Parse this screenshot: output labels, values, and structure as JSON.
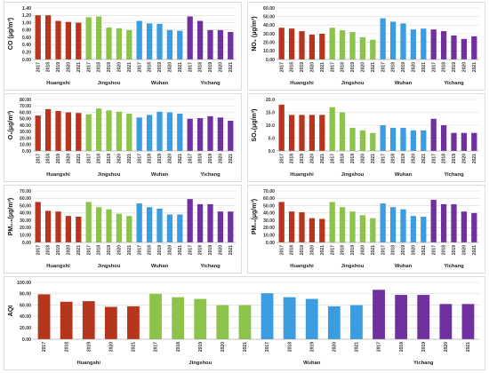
{
  "colors": {
    "Huangshi": "#b5351d",
    "Jingshou": "#8cc34a",
    "Wuhan": "#3c9ce0",
    "Yichang": "#7030a0",
    "grid": "#d9d9d9",
    "highlight": "#f4c6e8"
  },
  "chart_data": [
    {
      "type": "bar",
      "ylabel": "CO (μg/m³)",
      "ylim": [
        0,
        1.4
      ],
      "ticks": [
        "0.00",
        "0.20",
        "0.40",
        "0.60",
        "0.80",
        "1.00",
        "1.20",
        "1.40"
      ],
      "groups": [
        {
          "name": "Huangshi",
          "years": [
            "2017",
            "2018",
            "2019",
            "2020",
            "2021"
          ],
          "values": [
            1.2,
            1.2,
            1.05,
            1.02,
            1.0
          ]
        },
        {
          "name": "Jingshou",
          "years": [
            "2017",
            "2018",
            "2019",
            "2020",
            "2021"
          ],
          "values": [
            1.15,
            1.17,
            0.87,
            0.85,
            0.8
          ]
        },
        {
          "name": "Wuhan",
          "years": [
            "2017",
            "2018",
            "2019",
            "2020",
            "2021"
          ],
          "values": [
            1.05,
            0.98,
            0.97,
            0.8,
            0.78
          ]
        },
        {
          "name": "Yichang",
          "years": [
            "2017",
            "2018",
            "2019",
            "2020",
            "2021"
          ],
          "values": [
            1.17,
            1.05,
            0.8,
            0.8,
            0.75
          ]
        }
      ]
    },
    {
      "type": "bar",
      "ylabel": "NO₂ (μg/m³)",
      "ylim": [
        0,
        60
      ],
      "ticks": [
        "0.00",
        "10.00",
        "20.00",
        "30.00",
        "40.00",
        "50.00",
        "60.00"
      ],
      "groups": [
        {
          "name": "Huangshi",
          "years": [
            "2017",
            "2018",
            "2019",
            "2020",
            "2021"
          ],
          "values": [
            37,
            36,
            33,
            29,
            30
          ]
        },
        {
          "name": "Jingshou",
          "years": [
            "2017",
            "2018",
            "2019",
            "2020",
            "2021"
          ],
          "values": [
            37,
            34,
            32,
            26,
            23
          ]
        },
        {
          "name": "Wuhan",
          "years": [
            "2017",
            "2018",
            "2019",
            "2020",
            "2021"
          ],
          "values": [
            48,
            44,
            42,
            35,
            36
          ]
        },
        {
          "name": "Yichang",
          "years": [
            "2017",
            "2018",
            "2019",
            "2020",
            "2021"
          ],
          "values": [
            35,
            33,
            28,
            24,
            27
          ]
        }
      ]
    },
    {
      "type": "bar",
      "ylabel": "O₃(μg/m³)",
      "ylim": [
        0,
        80
      ],
      "ticks": [
        "0.00",
        "10.00",
        "20.00",
        "30.00",
        "40.00",
        "50.00",
        "60.00",
        "70.00",
        "80.00"
      ],
      "groups": [
        {
          "name": "Huangshi",
          "years": [
            "2017",
            "2018",
            "2019",
            "2020",
            "2021"
          ],
          "values": [
            55,
            65,
            62,
            60,
            59
          ]
        },
        {
          "name": "Jingshou",
          "years": [
            "2017",
            "2018",
            "2019",
            "2020",
            "2021"
          ],
          "values": [
            57,
            66,
            63,
            61,
            58
          ]
        },
        {
          "name": "Wuhan",
          "years": [
            "2017",
            "2018",
            "2019",
            "2020",
            "2021"
          ],
          "values": [
            52,
            56,
            61,
            60,
            58
          ]
        },
        {
          "name": "Yichang",
          "years": [
            "2017",
            "2018",
            "2019",
            "2020",
            "2021"
          ],
          "values": [
            50,
            51,
            54,
            52,
            47
          ]
        }
      ]
    },
    {
      "type": "bar",
      "ylabel": "SO₂(μg/m³)",
      "ylim": [
        0,
        20
      ],
      "ticks": [
        "0.0",
        "5.0",
        "10.0",
        "15.0",
        "20.0"
      ],
      "groups": [
        {
          "name": "Huangshi",
          "years": [
            "2017",
            "2018",
            "2019",
            "2020",
            "2021"
          ],
          "values": [
            18,
            14,
            14,
            14,
            14
          ]
        },
        {
          "name": "Jingshou",
          "years": [
            "2017",
            "2018",
            "2019",
            "2020",
            "2021"
          ],
          "values": [
            17,
            15,
            9,
            8,
            7
          ]
        },
        {
          "name": "Wuhan",
          "years": [
            "2017",
            "2018",
            "2019",
            "2020",
            "2021"
          ],
          "values": [
            10,
            9,
            9,
            8,
            8
          ]
        },
        {
          "name": "Yichang",
          "years": [
            "2017",
            "2018",
            "2019",
            "2020",
            "2021"
          ],
          "values": [
            12.5,
            10,
            7,
            7,
            7
          ]
        }
      ]
    },
    {
      "type": "bar",
      "ylabel": "PM₂.₅(μg/m³)",
      "ylim": [
        0,
        70
      ],
      "ticks": [
        "0.00",
        "10.00",
        "20.00",
        "30.00",
        "40.00",
        "50.00",
        "60.00",
        "70.00"
      ],
      "groups": [
        {
          "name": "Huangshi",
          "years": [
            "2017",
            "2018",
            "2019",
            "2020",
            "2021"
          ],
          "values": [
            55,
            43,
            42,
            36,
            35
          ]
        },
        {
          "name": "Jingshou",
          "years": [
            "2017",
            "2018",
            "2019",
            "2020",
            "2021"
          ],
          "values": [
            55,
            48,
            45,
            39,
            36
          ]
        },
        {
          "name": "Wuhan",
          "years": [
            "2017",
            "2018",
            "2019",
            "2020",
            "2021"
          ],
          "values": [
            53,
            48,
            46,
            38,
            38
          ]
        },
        {
          "name": "Yichang",
          "years": [
            "2017",
            "2018",
            "2019",
            "2020",
            "2021"
          ],
          "values": [
            59,
            52,
            52,
            42,
            42
          ]
        }
      ]
    },
    {
      "type": "bar",
      "ylabel": "PM₁₀(μg/m³)",
      "ylim": [
        0,
        70
      ],
      "ticks": [
        "0.00",
        "10.00",
        "20.00",
        "30.00",
        "40.00",
        "50.00",
        "60.00",
        "70.00"
      ],
      "groups": [
        {
          "name": "Huangshi",
          "years": [
            "2017",
            "2018",
            "2019",
            "2020",
            "2021"
          ],
          "values": [
            55,
            42,
            41,
            33,
            32
          ]
        },
        {
          "name": "Jingshou",
          "years": [
            "2017",
            "2018",
            "2019",
            "2020",
            "2021"
          ],
          "values": [
            55,
            48,
            42,
            37,
            33
          ]
        },
        {
          "name": "Wuhan",
          "years": [
            "2017",
            "2018",
            "2019",
            "2020",
            "2021"
          ],
          "values": [
            53,
            48,
            45,
            36,
            35
          ]
        },
        {
          "name": "Yichang",
          "years": [
            "2017",
            "2018",
            "2019",
            "2020",
            "2021"
          ],
          "values": [
            58,
            52,
            52,
            42,
            40
          ]
        }
      ]
    },
    {
      "type": "bar",
      "ylabel": "AQI",
      "ylim": [
        0,
        100
      ],
      "ticks": [
        "0.00",
        "20.00",
        "40.00",
        "60.00",
        "80.00",
        "100.00"
      ],
      "groups": [
        {
          "name": "Huangshi",
          "years": [
            "2017",
            "2018",
            "2019",
            "2020",
            "2021"
          ],
          "values": [
            79,
            66,
            67,
            57,
            58
          ]
        },
        {
          "name": "Jingshou",
          "years": [
            "2017",
            "2018",
            "2019",
            "2020",
            "2021"
          ],
          "values": [
            80,
            74,
            71,
            60,
            60
          ]
        },
        {
          "name": "Wuhan",
          "years": [
            "2017",
            "2018",
            "2019",
            "2020",
            "2021"
          ],
          "values": [
            81,
            74,
            71,
            58,
            60
          ]
        },
        {
          "name": "Yichang",
          "years": [
            "2017",
            "2018",
            "2019",
            "2020",
            "2021"
          ],
          "values": [
            87,
            78,
            78,
            62,
            62
          ]
        }
      ]
    }
  ]
}
